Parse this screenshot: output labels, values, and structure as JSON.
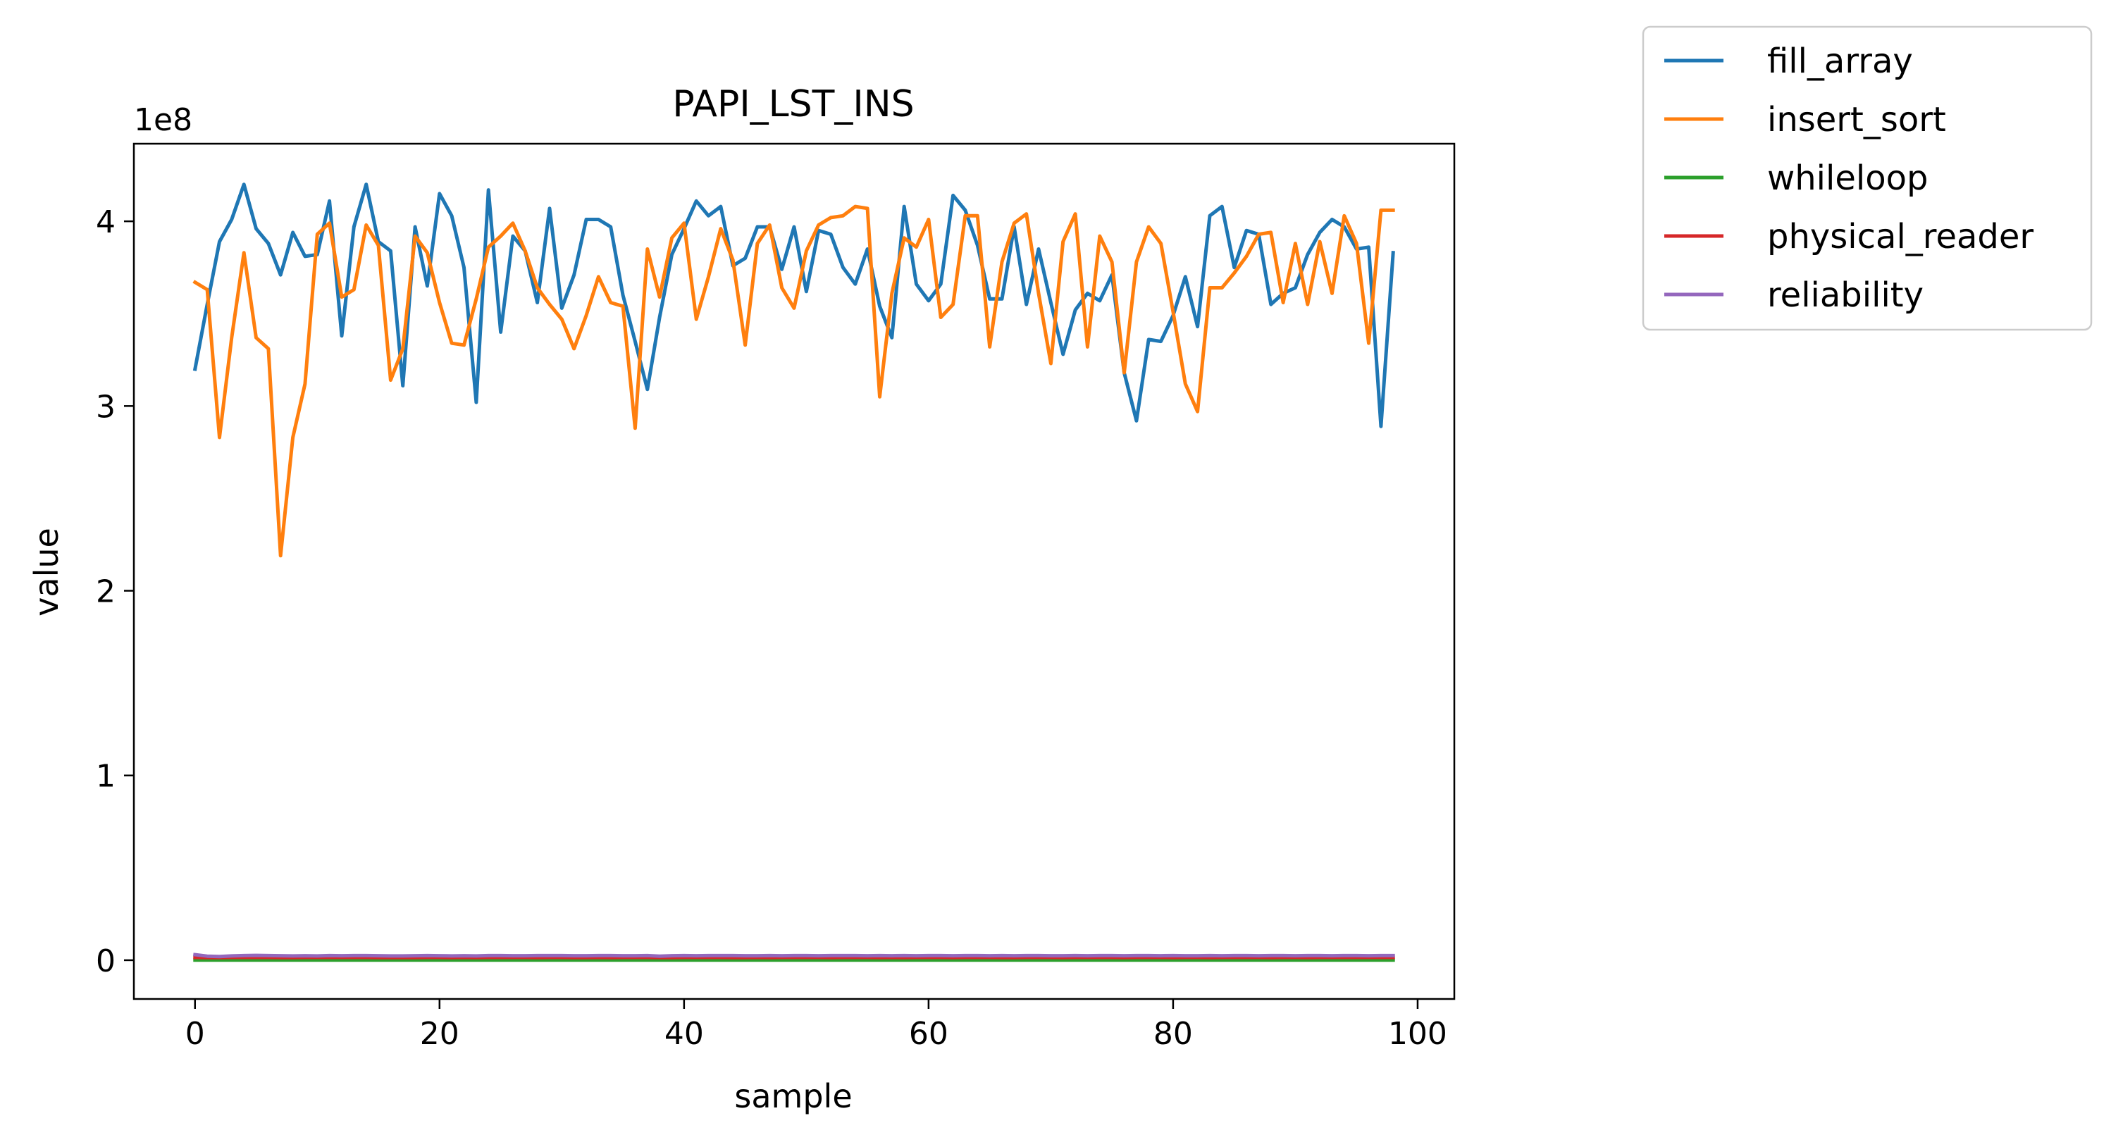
{
  "chart_data": {
    "type": "line",
    "title": "PAPI_LST_INS",
    "xlabel": "sample",
    "ylabel": "value",
    "y_offset_label": "1e8",
    "y_scale_note": "values in units of 1e8",
    "xlim": [
      -5.0,
      103.0
    ],
    "ylim": [
      -0.21,
      4.42
    ],
    "xticks": [
      0,
      20,
      40,
      60,
      80,
      100
    ],
    "yticks": [
      0,
      1,
      2,
      3,
      4
    ],
    "grid": false,
    "legend_position": "outside-top-right",
    "x": [
      0,
      1,
      2,
      3,
      4,
      5,
      6,
      7,
      8,
      9,
      10,
      11,
      12,
      13,
      14,
      15,
      16,
      17,
      18,
      19,
      20,
      21,
      22,
      23,
      24,
      25,
      26,
      27,
      28,
      29,
      30,
      31,
      32,
      33,
      34,
      35,
      36,
      37,
      38,
      39,
      40,
      41,
      42,
      43,
      44,
      45,
      46,
      47,
      48,
      49,
      50,
      51,
      52,
      53,
      54,
      55,
      56,
      57,
      58,
      59,
      60,
      61,
      62,
      63,
      64,
      65,
      66,
      67,
      68,
      69,
      70,
      71,
      72,
      73,
      74,
      75,
      76,
      77,
      78,
      79,
      80,
      81,
      82,
      83,
      84,
      85,
      86,
      87,
      88,
      89,
      90,
      91,
      92,
      93,
      94,
      95,
      96,
      97,
      98
    ],
    "series": [
      {
        "name": "fill_array",
        "color": "#1f77b4",
        "values": [
          3.2,
          3.55,
          3.89,
          4.01,
          4.2,
          3.96,
          3.88,
          3.71,
          3.94,
          3.81,
          3.82,
          4.11,
          3.38,
          3.97,
          4.2,
          3.89,
          3.84,
          3.11,
          3.97,
          3.65,
          4.15,
          4.03,
          3.75,
          3.02,
          4.17,
          3.4,
          3.92,
          3.84,
          3.56,
          4.07,
          3.53,
          3.71,
          4.01,
          4.01,
          3.97,
          3.6,
          3.35,
          3.09,
          3.48,
          3.82,
          3.96,
          4.11,
          4.03,
          4.08,
          3.76,
          3.8,
          3.97,
          3.97,
          3.74,
          3.97,
          3.62,
          3.95,
          3.93,
          3.75,
          3.66,
          3.85,
          3.54,
          3.37,
          4.08,
          3.66,
          3.57,
          3.66,
          4.14,
          4.06,
          3.87,
          3.58,
          3.58,
          3.97,
          3.55,
          3.85,
          3.56,
          3.28,
          3.52,
          3.61,
          3.57,
          3.71,
          3.18,
          2.92,
          3.36,
          3.35,
          3.49,
          3.7,
          3.43,
          4.03,
          4.08,
          3.75,
          3.95,
          3.93,
          3.55,
          3.61,
          3.64,
          3.82,
          3.94,
          4.01,
          3.97,
          3.85,
          3.86,
          2.89,
          3.83
        ]
      },
      {
        "name": "insert_sort",
        "color": "#ff7f0e",
        "values": [
          3.67,
          3.63,
          2.83,
          3.37,
          3.83,
          3.37,
          3.31,
          2.19,
          2.83,
          3.12,
          3.93,
          3.99,
          3.59,
          3.63,
          3.98,
          3.87,
          3.14,
          3.31,
          3.92,
          3.83,
          3.56,
          3.34,
          3.33,
          3.58,
          3.86,
          3.92,
          3.99,
          3.84,
          3.64,
          3.55,
          3.47,
          3.31,
          3.49,
          3.7,
          3.56,
          3.54,
          2.88,
          3.85,
          3.59,
          3.91,
          3.99,
          3.47,
          3.7,
          3.96,
          3.79,
          3.33,
          3.88,
          3.98,
          3.64,
          3.53,
          3.84,
          3.98,
          4.02,
          4.03,
          4.08,
          4.07,
          3.05,
          3.61,
          3.91,
          3.86,
          4.01,
          3.48,
          3.55,
          4.03,
          4.03,
          3.32,
          3.78,
          3.99,
          4.04,
          3.61,
          3.23,
          3.89,
          4.04,
          3.32,
          3.92,
          3.78,
          3.18,
          3.78,
          3.97,
          3.88,
          3.51,
          3.12,
          2.97,
          3.64,
          3.64,
          3.72,
          3.81,
          3.93,
          3.94,
          3.56,
          3.88,
          3.55,
          3.89,
          3.61,
          4.03,
          3.88,
          3.34,
          4.06,
          4.06
        ]
      },
      {
        "name": "whileloop",
        "color": "#2ca02c",
        "values": [
          0.001,
          0.001,
          0.001,
          0.001,
          0.001,
          0.001,
          0.001,
          0.001,
          0.001,
          0.001,
          0.001,
          0.001,
          0.001,
          0.001,
          0.001,
          0.001,
          0.001,
          0.001,
          0.001,
          0.001,
          0.001,
          0.001,
          0.001,
          0.001,
          0.001,
          0.001,
          0.001,
          0.001,
          0.001,
          0.001,
          0.001,
          0.001,
          0.001,
          0.001,
          0.001,
          0.001,
          0.001,
          0.001,
          0.001,
          0.001,
          0.001,
          0.001,
          0.001,
          0.001,
          0.001,
          0.001,
          0.001,
          0.001,
          0.001,
          0.001,
          0.001,
          0.001,
          0.001,
          0.001,
          0.001,
          0.001,
          0.001,
          0.001,
          0.001,
          0.001,
          0.001,
          0.001,
          0.001,
          0.001,
          0.001,
          0.001,
          0.001,
          0.001,
          0.001,
          0.001,
          0.001,
          0.001,
          0.001,
          0.001,
          0.001,
          0.001,
          0.001,
          0.001,
          0.001,
          0.001,
          0.001,
          0.001,
          0.001,
          0.001,
          0.001,
          0.001,
          0.001,
          0.001,
          0.001,
          0.001,
          0.001,
          0.001,
          0.001,
          0.001,
          0.001,
          0.001,
          0.001,
          0.001,
          0.001
        ]
      },
      {
        "name": "physical_reader",
        "color": "#d62728",
        "values": [
          0.015,
          0.014,
          0.014,
          0.015,
          0.015,
          0.015,
          0.015,
          0.014,
          0.014,
          0.015,
          0.015,
          0.015,
          0.015,
          0.015,
          0.015,
          0.014,
          0.014,
          0.014,
          0.014,
          0.015,
          0.015,
          0.014,
          0.015,
          0.014,
          0.015,
          0.015,
          0.015,
          0.015,
          0.014,
          0.015,
          0.015,
          0.014,
          0.014,
          0.015,
          0.014,
          0.015,
          0.015,
          0.015,
          0.014,
          0.014,
          0.015,
          0.015,
          0.015,
          0.015,
          0.014,
          0.014,
          0.015,
          0.014,
          0.015,
          0.015,
          0.015,
          0.015,
          0.014,
          0.015,
          0.015,
          0.015,
          0.014,
          0.015,
          0.014,
          0.015,
          0.015,
          0.015,
          0.014,
          0.015,
          0.015,
          0.015,
          0.014,
          0.014,
          0.015,
          0.015,
          0.015,
          0.014,
          0.015,
          0.015,
          0.015,
          0.015,
          0.014,
          0.015,
          0.015,
          0.015,
          0.014,
          0.015,
          0.015,
          0.014,
          0.015,
          0.015,
          0.015,
          0.015,
          0.014,
          0.015,
          0.015,
          0.014,
          0.015,
          0.015,
          0.015,
          0.015,
          0.015,
          0.015,
          0.015
        ]
      },
      {
        "name": "reliability",
        "color": "#9467bd",
        "values": [
          0.03,
          0.022,
          0.02,
          0.023,
          0.025,
          0.026,
          0.025,
          0.024,
          0.023,
          0.024,
          0.023,
          0.025,
          0.024,
          0.025,
          0.025,
          0.024,
          0.023,
          0.023,
          0.024,
          0.025,
          0.024,
          0.023,
          0.024,
          0.023,
          0.025,
          0.025,
          0.024,
          0.024,
          0.025,
          0.025,
          0.025,
          0.024,
          0.024,
          0.025,
          0.025,
          0.024,
          0.024,
          0.025,
          0.022,
          0.024,
          0.025,
          0.024,
          0.025,
          0.025,
          0.025,
          0.024,
          0.024,
          0.025,
          0.024,
          0.025,
          0.025,
          0.024,
          0.025,
          0.025,
          0.025,
          0.024,
          0.025,
          0.024,
          0.025,
          0.024,
          0.025,
          0.025,
          0.024,
          0.025,
          0.025,
          0.024,
          0.025,
          0.024,
          0.025,
          0.025,
          0.024,
          0.024,
          0.025,
          0.024,
          0.025,
          0.025,
          0.024,
          0.025,
          0.025,
          0.024,
          0.025,
          0.024,
          0.024,
          0.025,
          0.024,
          0.025,
          0.025,
          0.024,
          0.025,
          0.025,
          0.024,
          0.025,
          0.025,
          0.024,
          0.025,
          0.025,
          0.024,
          0.025,
          0.025
        ]
      }
    ]
  }
}
